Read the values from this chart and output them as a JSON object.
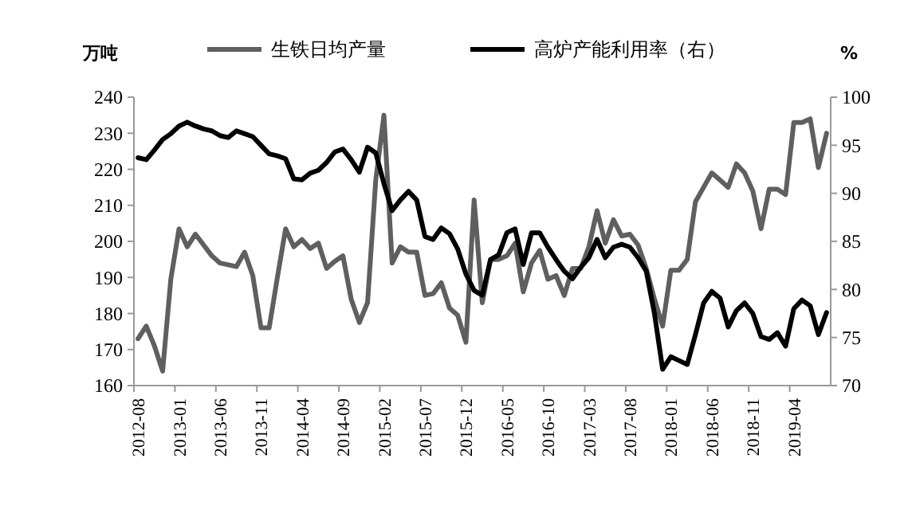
{
  "chart_data": {
    "type": "line",
    "ylabel": "万吨",
    "y2label": "%",
    "categories": [
      "2012-08",
      null,
      null,
      null,
      null,
      "2013-01",
      null,
      null,
      null,
      null,
      "2013-06",
      null,
      null,
      null,
      null,
      "2013-11",
      null,
      null,
      null,
      null,
      "2014-04",
      null,
      null,
      null,
      null,
      "2014-09",
      null,
      null,
      null,
      null,
      "2015-02",
      null,
      null,
      null,
      null,
      "2015-07",
      null,
      null,
      null,
      null,
      "2015-12",
      null,
      null,
      null,
      null,
      "2016-05",
      null,
      null,
      null,
      null,
      "2016-10",
      null,
      null,
      null,
      null,
      "2017-03",
      null,
      null,
      null,
      null,
      "2017-08",
      null,
      null,
      null,
      null,
      "2018-01",
      null,
      null,
      null,
      null,
      "2018-06",
      null,
      null,
      null,
      null,
      "2018-11",
      null,
      null,
      null,
      null,
      "2019-04",
      null,
      null,
      null,
      null
    ],
    "series": [
      {
        "name": "生铁日均产量",
        "color": "#5f5f5f",
        "values": [
          173,
          176.5,
          171,
          164,
          189.5,
          203.5,
          198.5,
          202,
          199,
          196,
          194,
          193.5,
          193,
          197,
          190.5,
          176,
          176,
          190,
          203.5,
          198.5,
          200.5,
          198,
          199.5,
          192.5,
          194.5,
          196,
          184,
          177.5,
          183,
          217,
          235,
          194,
          198.5,
          197,
          197,
          185,
          185.5,
          188.5,
          181.5,
          179.5,
          172,
          211.5,
          183,
          195,
          195,
          196,
          199.5,
          186,
          194,
          197.5,
          189.5,
          190.5,
          185,
          192.5,
          192.5,
          198.5,
          208.5,
          199.5,
          206,
          201.5,
          202,
          199,
          192.5,
          184,
          176.5,
          192,
          192,
          195,
          211,
          215,
          219,
          217,
          215,
          221.5,
          219,
          214,
          203.5,
          214.5,
          214.5,
          213,
          233,
          233,
          234,
          220.5,
          230
        ]
      },
      {
        "name": "高炉产能利用率（右）",
        "color": "#000000",
        "axis": "y2",
        "values": [
          93.7,
          93.5,
          94.5,
          95.6,
          96.2,
          97,
          97.4,
          97,
          96.7,
          96.5,
          96,
          95.8,
          96.5,
          96.2,
          95.9,
          95,
          94.1,
          93.9,
          93.6,
          91.5,
          91.4,
          92.1,
          92.4,
          93.2,
          94.3,
          94.6,
          93.5,
          92.2,
          94.8,
          94.2,
          91,
          88.2,
          89.3,
          90.2,
          89.3,
          85.5,
          85.2,
          86.4,
          85.8,
          84.2,
          81.6,
          79.9,
          79.4,
          83.1,
          83.6,
          85.9,
          86.3,
          82.6,
          85.9,
          85.9,
          84.4,
          83.1,
          81.9,
          81.1,
          82.3,
          83.3,
          85.2,
          83.3,
          84.4,
          84.7,
          84.4,
          83.3,
          81.9,
          77.5,
          71.7,
          73,
          72.6,
          72.2,
          75.3,
          78.6,
          79.8,
          79.1,
          76.1,
          77.8,
          78.6,
          77.5,
          75.1,
          74.8,
          75.5,
          74.1,
          78,
          78.9,
          78.3,
          75.3,
          77.6
        ]
      }
    ],
    "ylim": [
      160,
      240
    ],
    "yticks": [
      160,
      170,
      180,
      190,
      200,
      210,
      220,
      230,
      240
    ],
    "y2lim": [
      70,
      100
    ],
    "y2ticks": [
      70,
      75,
      80,
      85,
      90,
      95,
      100
    ],
    "legend": "top",
    "grid": false
  }
}
